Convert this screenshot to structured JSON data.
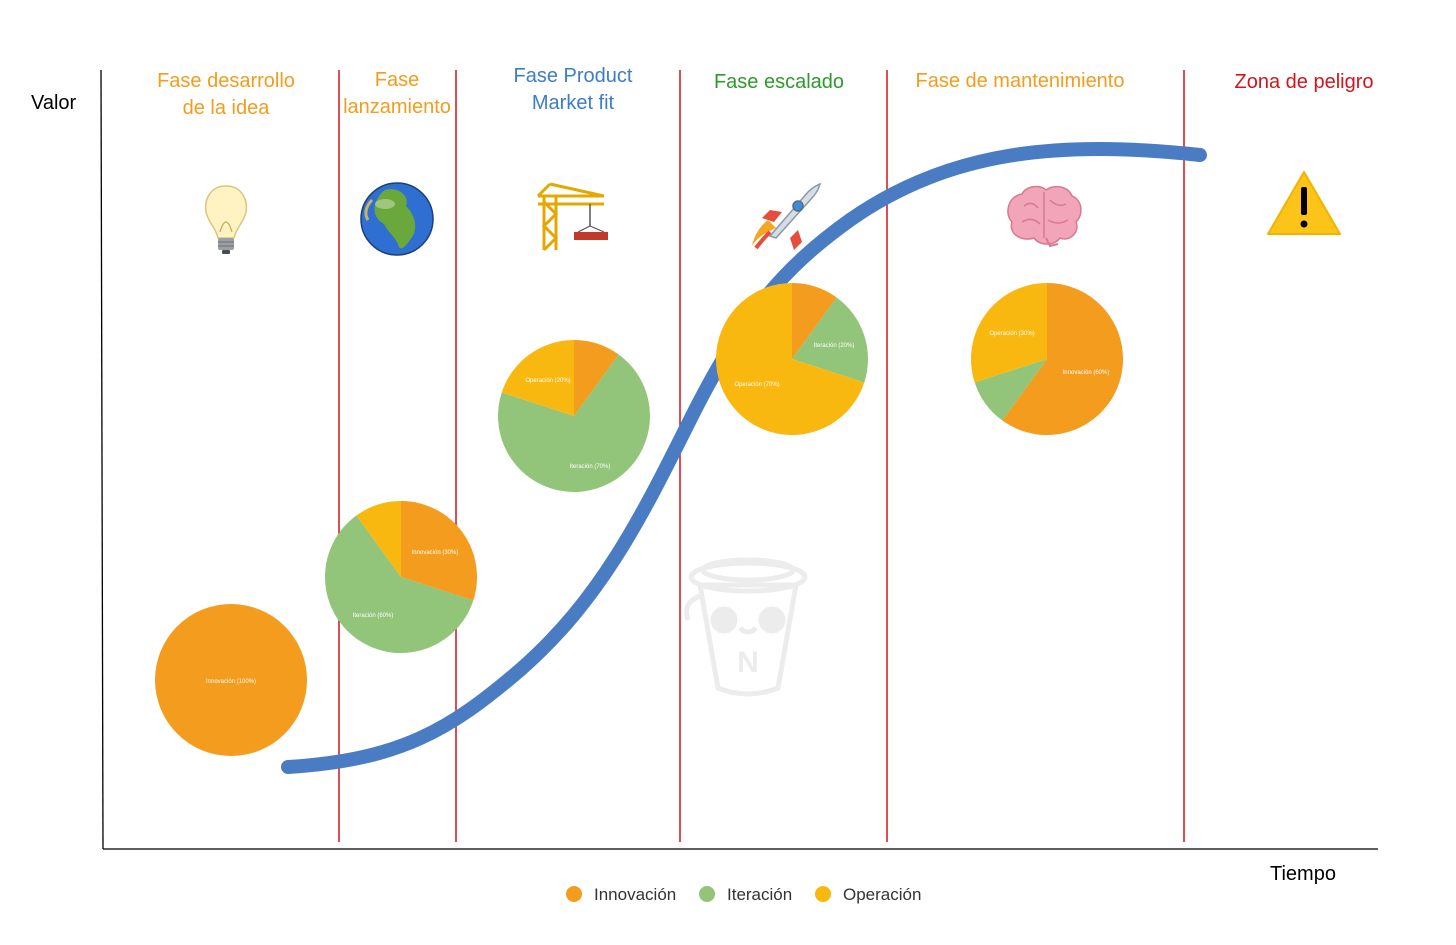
{
  "axes": {
    "y_label": "Valor",
    "x_label": "Tiempo"
  },
  "phases": [
    {
      "id": "idea",
      "lines": [
        "Fase desarrollo",
        "de la idea"
      ],
      "color": "#f39c1d",
      "icon": "light-bulb-icon"
    },
    {
      "id": "lanzamiento",
      "lines": [
        "Fase",
        "lanzamiento"
      ],
      "color": "#f39c1d",
      "icon": "globe-icon"
    },
    {
      "id": "pmf",
      "lines": [
        "Fase Product",
        "Market fit"
      ],
      "color": "#3d7cc9",
      "icon": "crane-icon"
    },
    {
      "id": "escalado",
      "lines": [
        "Fase escalado"
      ],
      "color": "#2e9a2e",
      "icon": "rocket-icon"
    },
    {
      "id": "mantenimiento",
      "lines": [
        "Fase de mantenimiento"
      ],
      "color": "#f39c1d",
      "icon": "brain-icon"
    },
    {
      "id": "peligro",
      "lines": [
        "Zona de peligro"
      ],
      "color": "#d0151c",
      "icon": "warning-icon"
    }
  ],
  "legend": [
    {
      "key": "innovacion",
      "label": "Innovación",
      "color": "#f39c1d"
    },
    {
      "key": "iteracion",
      "label": "Iteración",
      "color": "#92c47a"
    },
    {
      "key": "operacion",
      "label": "Operación",
      "color": "#f9b810"
    }
  ],
  "chart_data": [
    {
      "type": "pie",
      "phase": "idea",
      "slices": [
        {
          "label": "Innovación (100%)",
          "category": "innovacion",
          "value": 100
        }
      ]
    },
    {
      "type": "pie",
      "phase": "lanzamiento",
      "slices": [
        {
          "label": "Innovación (30%)",
          "category": "innovacion",
          "value": 30
        },
        {
          "label": "Iteración (60%)",
          "category": "iteracion",
          "value": 60
        },
        {
          "label": "",
          "category": "operacion",
          "value": 10
        }
      ]
    },
    {
      "type": "pie",
      "phase": "pmf",
      "slices": [
        {
          "label": "",
          "category": "innovacion",
          "value": 10
        },
        {
          "label": "Iteración (70%)",
          "category": "iteracion",
          "value": 70
        },
        {
          "label": "Operación (20%)",
          "category": "operacion",
          "value": 20
        }
      ]
    },
    {
      "type": "pie",
      "phase": "escalado",
      "slices": [
        {
          "label": "",
          "category": "innovacion",
          "value": 10
        },
        {
          "label": "Iteración (20%)",
          "category": "iteracion",
          "value": 20
        },
        {
          "label": "Operación (70%)",
          "category": "operacion",
          "value": 70
        }
      ]
    },
    {
      "type": "pie",
      "phase": "mantenimiento",
      "slices": [
        {
          "label": "Innovación (60%)",
          "category": "innovacion",
          "value": 60
        },
        {
          "label": "",
          "category": "iteracion",
          "value": 10
        },
        {
          "label": "Operación (30%)",
          "category": "operacion",
          "value": 30
        }
      ]
    }
  ],
  "colors": {
    "curve": "#4a7cc4",
    "divider": "#d0151c",
    "axis": "#000000"
  },
  "watermark": {
    "letter": "N"
  }
}
